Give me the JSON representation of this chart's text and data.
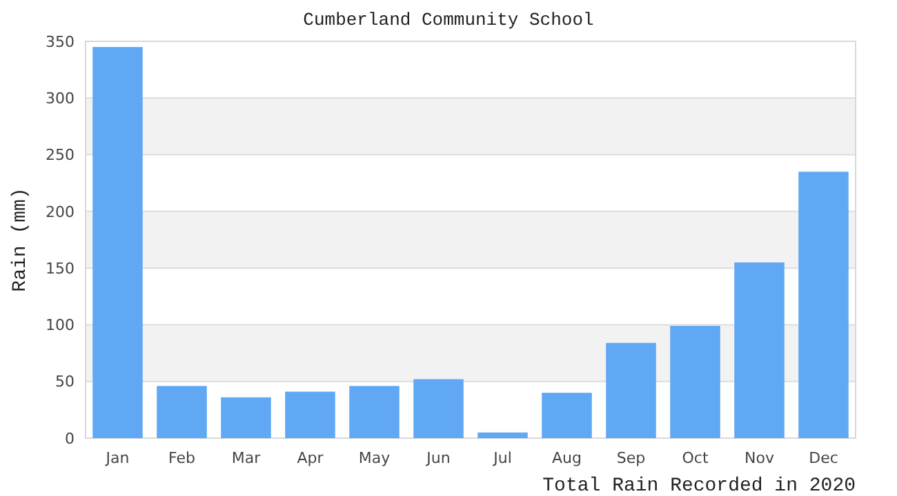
{
  "chart_data": {
    "type": "bar",
    "title": "Cumberland Community School",
    "xlabel": "Total Rain Recorded in 2020",
    "ylabel": "Rain (mm)",
    "categories": [
      "Jan",
      "Feb",
      "Mar",
      "Apr",
      "May",
      "Jun",
      "Jul",
      "Aug",
      "Sep",
      "Oct",
      "Nov",
      "Dec"
    ],
    "values": [
      345,
      46,
      36,
      41,
      46,
      52,
      5,
      40,
      84,
      99,
      155,
      235
    ],
    "color": "#60a8f4",
    "ylim": [
      0,
      350
    ],
    "yticks": [
      0,
      50,
      100,
      150,
      200,
      250,
      300,
      350
    ],
    "grid": "y"
  }
}
